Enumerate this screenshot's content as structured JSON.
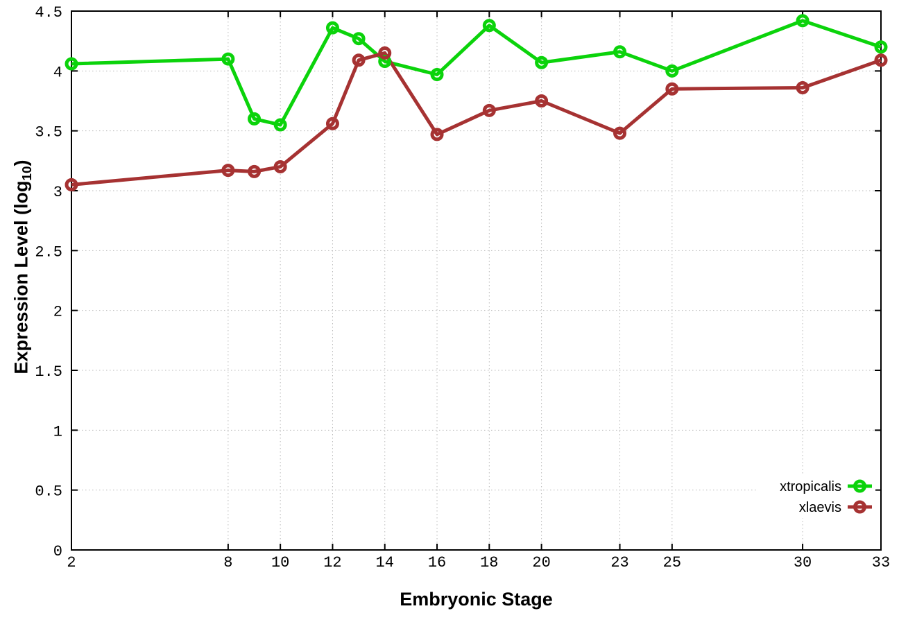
{
  "chart_data": {
    "type": "line",
    "title": "",
    "xlabel": "Embryonic Stage",
    "ylabel": {
      "full": "Expression Level (log10)",
      "base": "Expression Level (log",
      "sub": "10",
      "close": ")"
    },
    "xlim": [
      2,
      33
    ],
    "ylim": [
      0,
      4.5
    ],
    "grid": true,
    "legend_position": "bottom-right",
    "x_tick_values": [
      2,
      8,
      10,
      12,
      14,
      16,
      18,
      20,
      23,
      25,
      30,
      33
    ],
    "x_tick_labels": [
      "2",
      "8",
      "10",
      "12",
      "14",
      "16",
      "18",
      "20",
      "23",
      "25",
      "30",
      "33"
    ],
    "y_tick_values": [
      0,
      0.5,
      1,
      1.5,
      2,
      2.5,
      3,
      3.5,
      4,
      4.5
    ],
    "y_tick_labels": [
      "0",
      "0.5",
      "1",
      "1.5",
      "2",
      "2.5",
      "3",
      "3.5",
      "4",
      "4.5"
    ],
    "x": [
      2,
      8,
      9,
      10,
      12,
      13,
      14,
      16,
      18,
      20,
      23,
      25,
      30,
      33
    ],
    "series": [
      {
        "name": "xtropicalis",
        "color": "#0bd30b",
        "values": [
          4.06,
          4.1,
          3.6,
          3.55,
          4.36,
          4.27,
          4.08,
          3.97,
          4.38,
          4.07,
          4.16,
          4.0,
          4.42,
          4.2
        ]
      },
      {
        "name": "xlaevis",
        "color": "#a63232",
        "values": [
          3.05,
          3.17,
          3.16,
          3.2,
          3.56,
          4.09,
          4.15,
          3.47,
          3.67,
          3.75,
          3.48,
          3.85,
          3.86,
          4.09
        ]
      }
    ],
    "colors": {
      "axis": "#000000",
      "grid": "#b8b8b8",
      "background": "#ffffff"
    }
  }
}
